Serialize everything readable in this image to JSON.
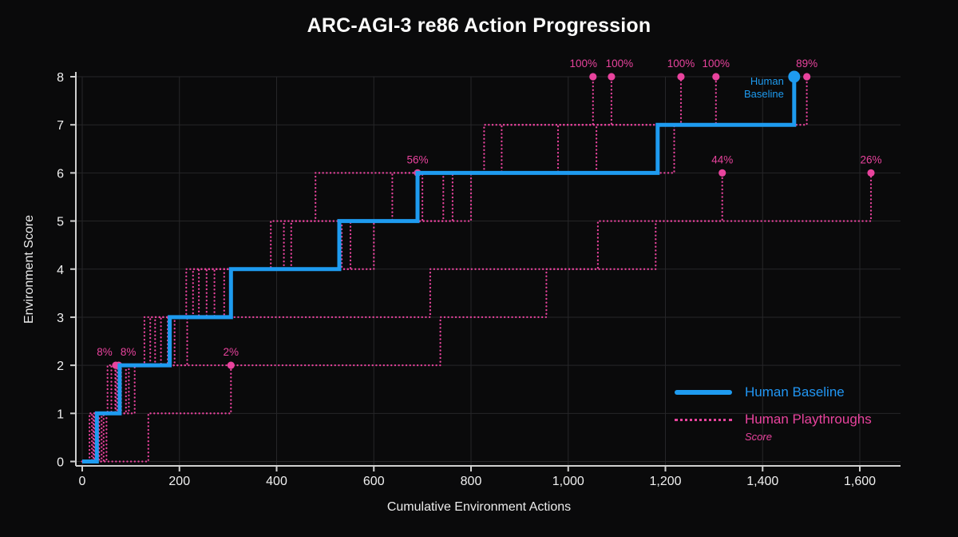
{
  "title": "ARC-AGI-3 re86 Action Progression",
  "legend": {
    "baseline_label": "Human Baseline",
    "playthroughs_label": "Human Playthroughs",
    "playthroughs_sublabel": "Score"
  },
  "colors": {
    "background": "#0a0a0b",
    "baseline_blue": "#1e9bf0",
    "playthrough_pink": "#e8439d",
    "grid": "#262629",
    "axis": "#cfcfcf",
    "tick_text": "#f0f0f0"
  },
  "chart_data": {
    "type": "line",
    "subtype": "step",
    "title": "ARC-AGI-3 re86 Action Progression",
    "xlabel": "Cumulative Environment Actions",
    "ylabel": "Environment Score",
    "xlim": [
      0,
      1690
    ],
    "ylim": [
      0,
      8
    ],
    "grid": true,
    "legend_position": "lower right",
    "x_tick_values": [
      0,
      200,
      400,
      600,
      800,
      1000,
      1200,
      1400,
      1600
    ],
    "x_tick_labels": [
      "0",
      "200",
      "400",
      "600",
      "800",
      "1,000",
      "1,200",
      "1,400",
      "1,600"
    ],
    "y_tick_values": [
      0,
      1,
      2,
      3,
      4,
      5,
      6,
      7,
      8
    ],
    "y_tick_labels": [
      "0",
      "1",
      "2",
      "3",
      "4",
      "5",
      "6",
      "7",
      "8"
    ],
    "baseline": {
      "name": "Human Baseline",
      "color": "#1e9bf0",
      "style": "solid",
      "points": [
        [
          0,
          0
        ],
        [
          30,
          0
        ],
        [
          30,
          1
        ],
        [
          77,
          1
        ],
        [
          77,
          2
        ],
        [
          180,
          2
        ],
        [
          180,
          3
        ],
        [
          306,
          3
        ],
        [
          306,
          4
        ],
        [
          529,
          4
        ],
        [
          529,
          5
        ],
        [
          690,
          5
        ],
        [
          690,
          6
        ],
        [
          1184,
          6
        ],
        [
          1184,
          7
        ],
        [
          1465,
          7
        ],
        [
          1465,
          8
        ]
      ],
      "endpoint": [
        1465,
        8
      ],
      "annotation_lines": [
        "Human",
        "Baseline"
      ]
    },
    "playthroughs": {
      "name": "Human Playthroughs",
      "color": "#e8439d",
      "style": "dotted",
      "runs": [
        {
          "label": "8%",
          "end": [
            69,
            2
          ],
          "label_dx": -14,
          "points": [
            [
              0,
              0
            ],
            [
              23,
              0
            ],
            [
              23,
              1
            ],
            [
              69,
              1
            ],
            [
              69,
              2
            ]
          ]
        },
        {
          "label": "8%",
          "end": [
            75,
            2
          ],
          "label_dx": 12,
          "points": [
            [
              0,
              0
            ],
            [
              33,
              0
            ],
            [
              33,
              1
            ],
            [
              75,
              1
            ],
            [
              75,
              2
            ]
          ]
        },
        {
          "label": "2%",
          "end": [
            306,
            2
          ],
          "label_dx": 0,
          "points": [
            [
              0,
              0
            ],
            [
              136,
              0
            ],
            [
              136,
              1
            ],
            [
              306,
              1
            ],
            [
              306,
              2
            ]
          ]
        },
        {
          "label": "56%",
          "end": [
            690,
            6
          ],
          "label_dx": 0,
          "points": [
            [
              0,
              0
            ],
            [
              25,
              0
            ],
            [
              25,
              1
            ],
            [
              68,
              1
            ],
            [
              68,
              2
            ],
            [
              140,
              2
            ],
            [
              140,
              3
            ],
            [
              228,
              3
            ],
            [
              228,
              4
            ],
            [
              415,
              4
            ],
            [
              415,
              5
            ],
            [
              480,
              5
            ],
            [
              480,
              6
            ],
            [
              690,
              6
            ]
          ]
        },
        {
          "label": "44%",
          "end": [
            1317,
            6
          ],
          "label_dx": 0,
          "points": [
            [
              0,
              0
            ],
            [
              28,
              0
            ],
            [
              28,
              1
            ],
            [
              72,
              1
            ],
            [
              72,
              2
            ],
            [
              737,
              2
            ],
            [
              737,
              3
            ],
            [
              955,
              3
            ],
            [
              955,
              4
            ],
            [
              1180,
              4
            ],
            [
              1180,
              5
            ],
            [
              1317,
              5
            ],
            [
              1317,
              6
            ]
          ]
        },
        {
          "label": "26%",
          "end": [
            1623,
            6
          ],
          "label_dx": 0,
          "points": [
            [
              0,
              0
            ],
            [
              40,
              0
            ],
            [
              40,
              1
            ],
            [
              90,
              1
            ],
            [
              90,
              2
            ],
            [
              216,
              2
            ],
            [
              216,
              3
            ],
            [
              716,
              3
            ],
            [
              716,
              4
            ],
            [
              1061,
              4
            ],
            [
              1061,
              5
            ],
            [
              1623,
              5
            ],
            [
              1623,
              6
            ]
          ]
        },
        {
          "label": "100%",
          "end": [
            1051,
            8
          ],
          "label_dx": -12,
          "points": [
            [
              0,
              0
            ],
            [
              20,
              0
            ],
            [
              20,
              1
            ],
            [
              60,
              1
            ],
            [
              60,
              2
            ],
            [
              150,
              2
            ],
            [
              150,
              3
            ],
            [
              240,
              3
            ],
            [
              240,
              4
            ],
            [
              430,
              4
            ],
            [
              430,
              5
            ],
            [
              743,
              5
            ],
            [
              743,
              6
            ],
            [
              827,
              6
            ],
            [
              827,
              7
            ],
            [
              1051,
              7
            ],
            [
              1051,
              8
            ]
          ]
        },
        {
          "label": "100%",
          "end": [
            1089,
            8
          ],
          "label_dx": 10,
          "points": [
            [
              0,
              0
            ],
            [
              35,
              0
            ],
            [
              35,
              1
            ],
            [
              80,
              1
            ],
            [
              80,
              2
            ],
            [
              162,
              2
            ],
            [
              162,
              3
            ],
            [
              256,
              3
            ],
            [
              256,
              4
            ],
            [
              534,
              4
            ],
            [
              534,
              5
            ],
            [
              700,
              5
            ],
            [
              700,
              6
            ],
            [
              863,
              6
            ],
            [
              863,
              7
            ],
            [
              1089,
              7
            ],
            [
              1089,
              8
            ]
          ]
        },
        {
          "label": "100%",
          "end": [
            1232,
            8
          ],
          "label_dx": 0,
          "points": [
            [
              0,
              0
            ],
            [
              44,
              0
            ],
            [
              44,
              1
            ],
            [
              96,
              1
            ],
            [
              96,
              2
            ],
            [
              176,
              2
            ],
            [
              176,
              3
            ],
            [
              272,
              3
            ],
            [
              272,
              4
            ],
            [
              552,
              4
            ],
            [
              552,
              5
            ],
            [
              762,
              5
            ],
            [
              762,
              6
            ],
            [
              979,
              6
            ],
            [
              979,
              7
            ],
            [
              1232,
              7
            ],
            [
              1232,
              8
            ]
          ]
        },
        {
          "label": "100%",
          "end": [
            1304,
            8
          ],
          "label_dx": 0,
          "points": [
            [
              0,
              0
            ],
            [
              50,
              0
            ],
            [
              50,
              1
            ],
            [
              108,
              1
            ],
            [
              108,
              2
            ],
            [
              190,
              2
            ],
            [
              190,
              3
            ],
            [
              292,
              3
            ],
            [
              292,
              4
            ],
            [
              600,
              4
            ],
            [
              600,
              5
            ],
            [
              800,
              5
            ],
            [
              800,
              6
            ],
            [
              1058,
              6
            ],
            [
              1058,
              7
            ],
            [
              1304,
              7
            ],
            [
              1304,
              8
            ]
          ]
        },
        {
          "label": "89%",
          "end": [
            1491,
            8
          ],
          "label_dx": 0,
          "points": [
            [
              0,
              0
            ],
            [
              15,
              0
            ],
            [
              15,
              1
            ],
            [
              52,
              1
            ],
            [
              52,
              2
            ],
            [
              128,
              2
            ],
            [
              128,
              3
            ],
            [
              214,
              3
            ],
            [
              214,
              4
            ],
            [
              388,
              4
            ],
            [
              388,
              5
            ],
            [
              638,
              5
            ],
            [
              638,
              6
            ],
            [
              1218,
              6
            ],
            [
              1218,
              7
            ],
            [
              1491,
              7
            ],
            [
              1491,
              8
            ]
          ]
        }
      ]
    }
  }
}
